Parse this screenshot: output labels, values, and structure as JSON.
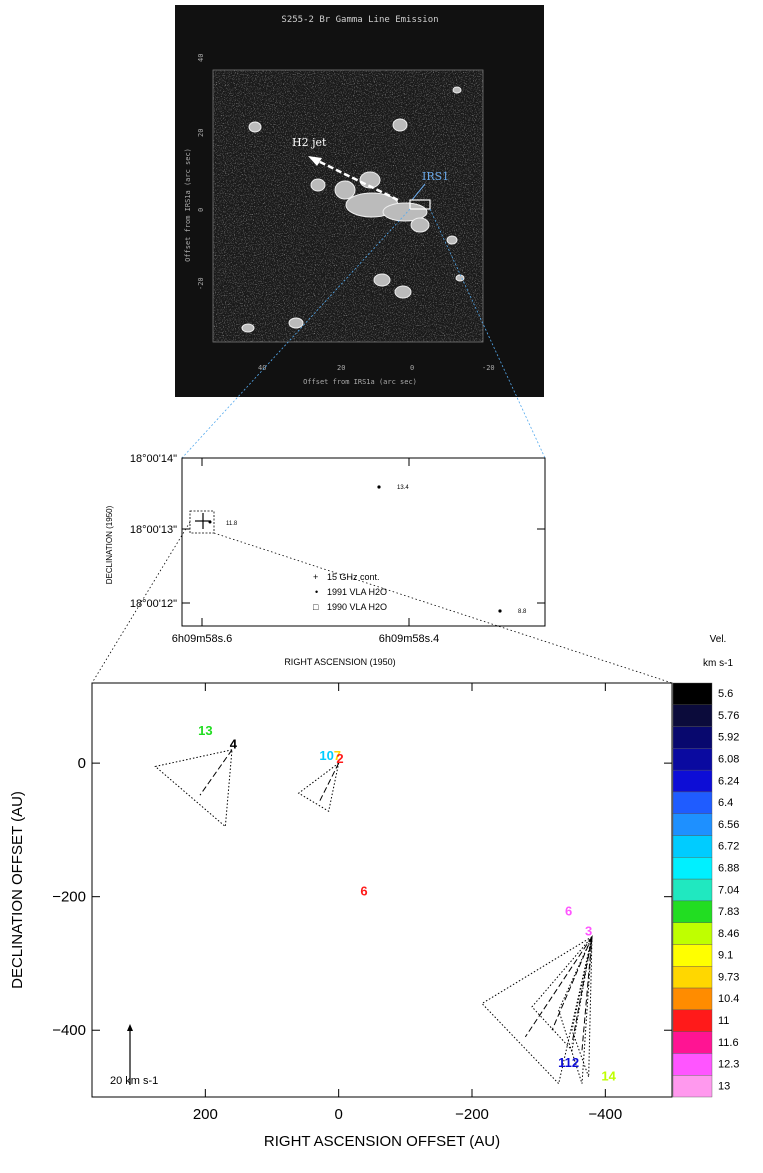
{
  "top_panel": {
    "title": "S255-2 Br Gamma Line Emission",
    "jet_label": "H2 jet",
    "source_label": "IRS1",
    "ylabel": "Offset from IRS1a (arc sec)",
    "xlabel": "Offset from IRS1a (arc sec)",
    "yticks": [
      "40",
      "20",
      "0",
      "-20"
    ],
    "xticks": [
      "40",
      "20",
      "0",
      "-20"
    ]
  },
  "middle_panel": {
    "ylabel": "DECLINATION (1950)",
    "xlabel": "RIGHT ASCENSION (1950)",
    "yticks": [
      "18°00'14\"",
      "18°00'13\"",
      "18°00'12\"",
      ""
    ],
    "xticks": [
      "6h09m58s.6",
      "6h09m58s.4"
    ],
    "point_labels": [
      "13.4",
      "11.8",
      "8.8"
    ],
    "legend": [
      {
        "symbol": "+",
        "text": "15    GHz cont."
      },
      {
        "symbol": "•",
        "text": "1991   VLA H2O"
      },
      {
        "symbol": "□",
        "text": "1990   VLA H2O"
      }
    ]
  },
  "chart_data": {
    "type": "scatter",
    "xlabel": "RIGHT ASCENSION OFFSET (AU)",
    "ylabel": "DECLINATION OFFSET (AU)",
    "xlim": [
      370,
      -500
    ],
    "ylim": [
      -500,
      120
    ],
    "xticks": [
      200,
      0,
      -200,
      -400
    ],
    "yticks": [
      0,
      -200,
      -400
    ],
    "scale_bar_label": "20 km s-1",
    "colorbar": {
      "title_line1": "Vel.",
      "title_line2": "km s-1",
      "levels": [
        {
          "label": "5.6",
          "color": "#000000"
        },
        {
          "label": "5.76",
          "color": "#0b0b3b"
        },
        {
          "label": "5.92",
          "color": "#08086e"
        },
        {
          "label": "6.08",
          "color": "#0a0aa0"
        },
        {
          "label": "6.24",
          "color": "#0d0dd6"
        },
        {
          "label": "6.4",
          "color": "#1f5cff"
        },
        {
          "label": "6.56",
          "color": "#1e90ff"
        },
        {
          "label": "6.72",
          "color": "#00ccff"
        },
        {
          "label": "6.88",
          "color": "#00f0ff"
        },
        {
          "label": "7.04",
          "color": "#20e8c0"
        },
        {
          "label": "7.83",
          "color": "#22dd22"
        },
        {
          "label": "8.46",
          "color": "#bfff00"
        },
        {
          "label": "9.1",
          "color": "#ffff00"
        },
        {
          "label": "9.73",
          "color": "#ffd700"
        },
        {
          "label": "10.4",
          "color": "#ff8c00"
        },
        {
          "label": "11",
          "color": "#ff1a1a"
        },
        {
          "label": "11.6",
          "color": "#ff1493"
        },
        {
          "label": "12.3",
          "color": "#ff55ff"
        },
        {
          "label": "13",
          "color": "#ff99ee"
        }
      ]
    },
    "spot_labels": [
      {
        "text": "13",
        "x": 200,
        "y": 42,
        "color": "#22dd22"
      },
      {
        "text": "4",
        "x": 158,
        "y": 22,
        "color": "#000000"
      },
      {
        "text": "10",
        "x": 18,
        "y": 5,
        "color": "#00ccff"
      },
      {
        "text": "7",
        "x": 2,
        "y": 5,
        "color": "#ffd700"
      },
      {
        "text": "2",
        "x": -2,
        "y": 0,
        "color": "#ff1a1a"
      },
      {
        "text": "6",
        "x": -38,
        "y": -198,
        "color": "#ff1a1a"
      },
      {
        "text": "6",
        "x": -345,
        "y": -228,
        "color": "#ff55ff"
      },
      {
        "text": "3",
        "x": -375,
        "y": -258,
        "color": "#ff55ff"
      },
      {
        "text": "112",
        "x": -345,
        "y": -455,
        "color": "#0d0dd6"
      },
      {
        "text": "14",
        "x": -405,
        "y": -475,
        "color": "#bfff00"
      }
    ],
    "cones": [
      {
        "apex": [
          160,
          20
        ],
        "ends": [
          [
            275,
            -5
          ],
          [
            170,
            -95
          ]
        ],
        "axis_end": [
          208,
          -48
        ]
      },
      {
        "apex": [
          0,
          0
        ],
        "ends": [
          [
            60,
            -45
          ],
          [
            15,
            -72
          ]
        ],
        "axis_end": [
          30,
          -60
        ]
      },
      {
        "apex": [
          -380,
          -260
        ],
        "ends": [
          [
            -215,
            -360
          ],
          [
            -330,
            -480
          ]
        ],
        "axis_end": [
          -280,
          -410
        ]
      },
      {
        "apex": [
          -380,
          -260
        ],
        "ends": [
          [
            -290,
            -365
          ],
          [
            -350,
            -430
          ]
        ],
        "axis_end": [
          -320,
          -400
        ]
      },
      {
        "apex": [
          -380,
          -260
        ],
        "ends": [
          [
            -330,
            -370
          ],
          [
            -365,
            -480
          ]
        ],
        "axis_end": [
          -350,
          -420
        ]
      },
      {
        "apex": [
          -380,
          -260
        ],
        "ends": [
          [
            -350,
            -400
          ],
          [
            -375,
            -470
          ]
        ],
        "axis_end": [
          -365,
          -430
        ]
      }
    ]
  }
}
